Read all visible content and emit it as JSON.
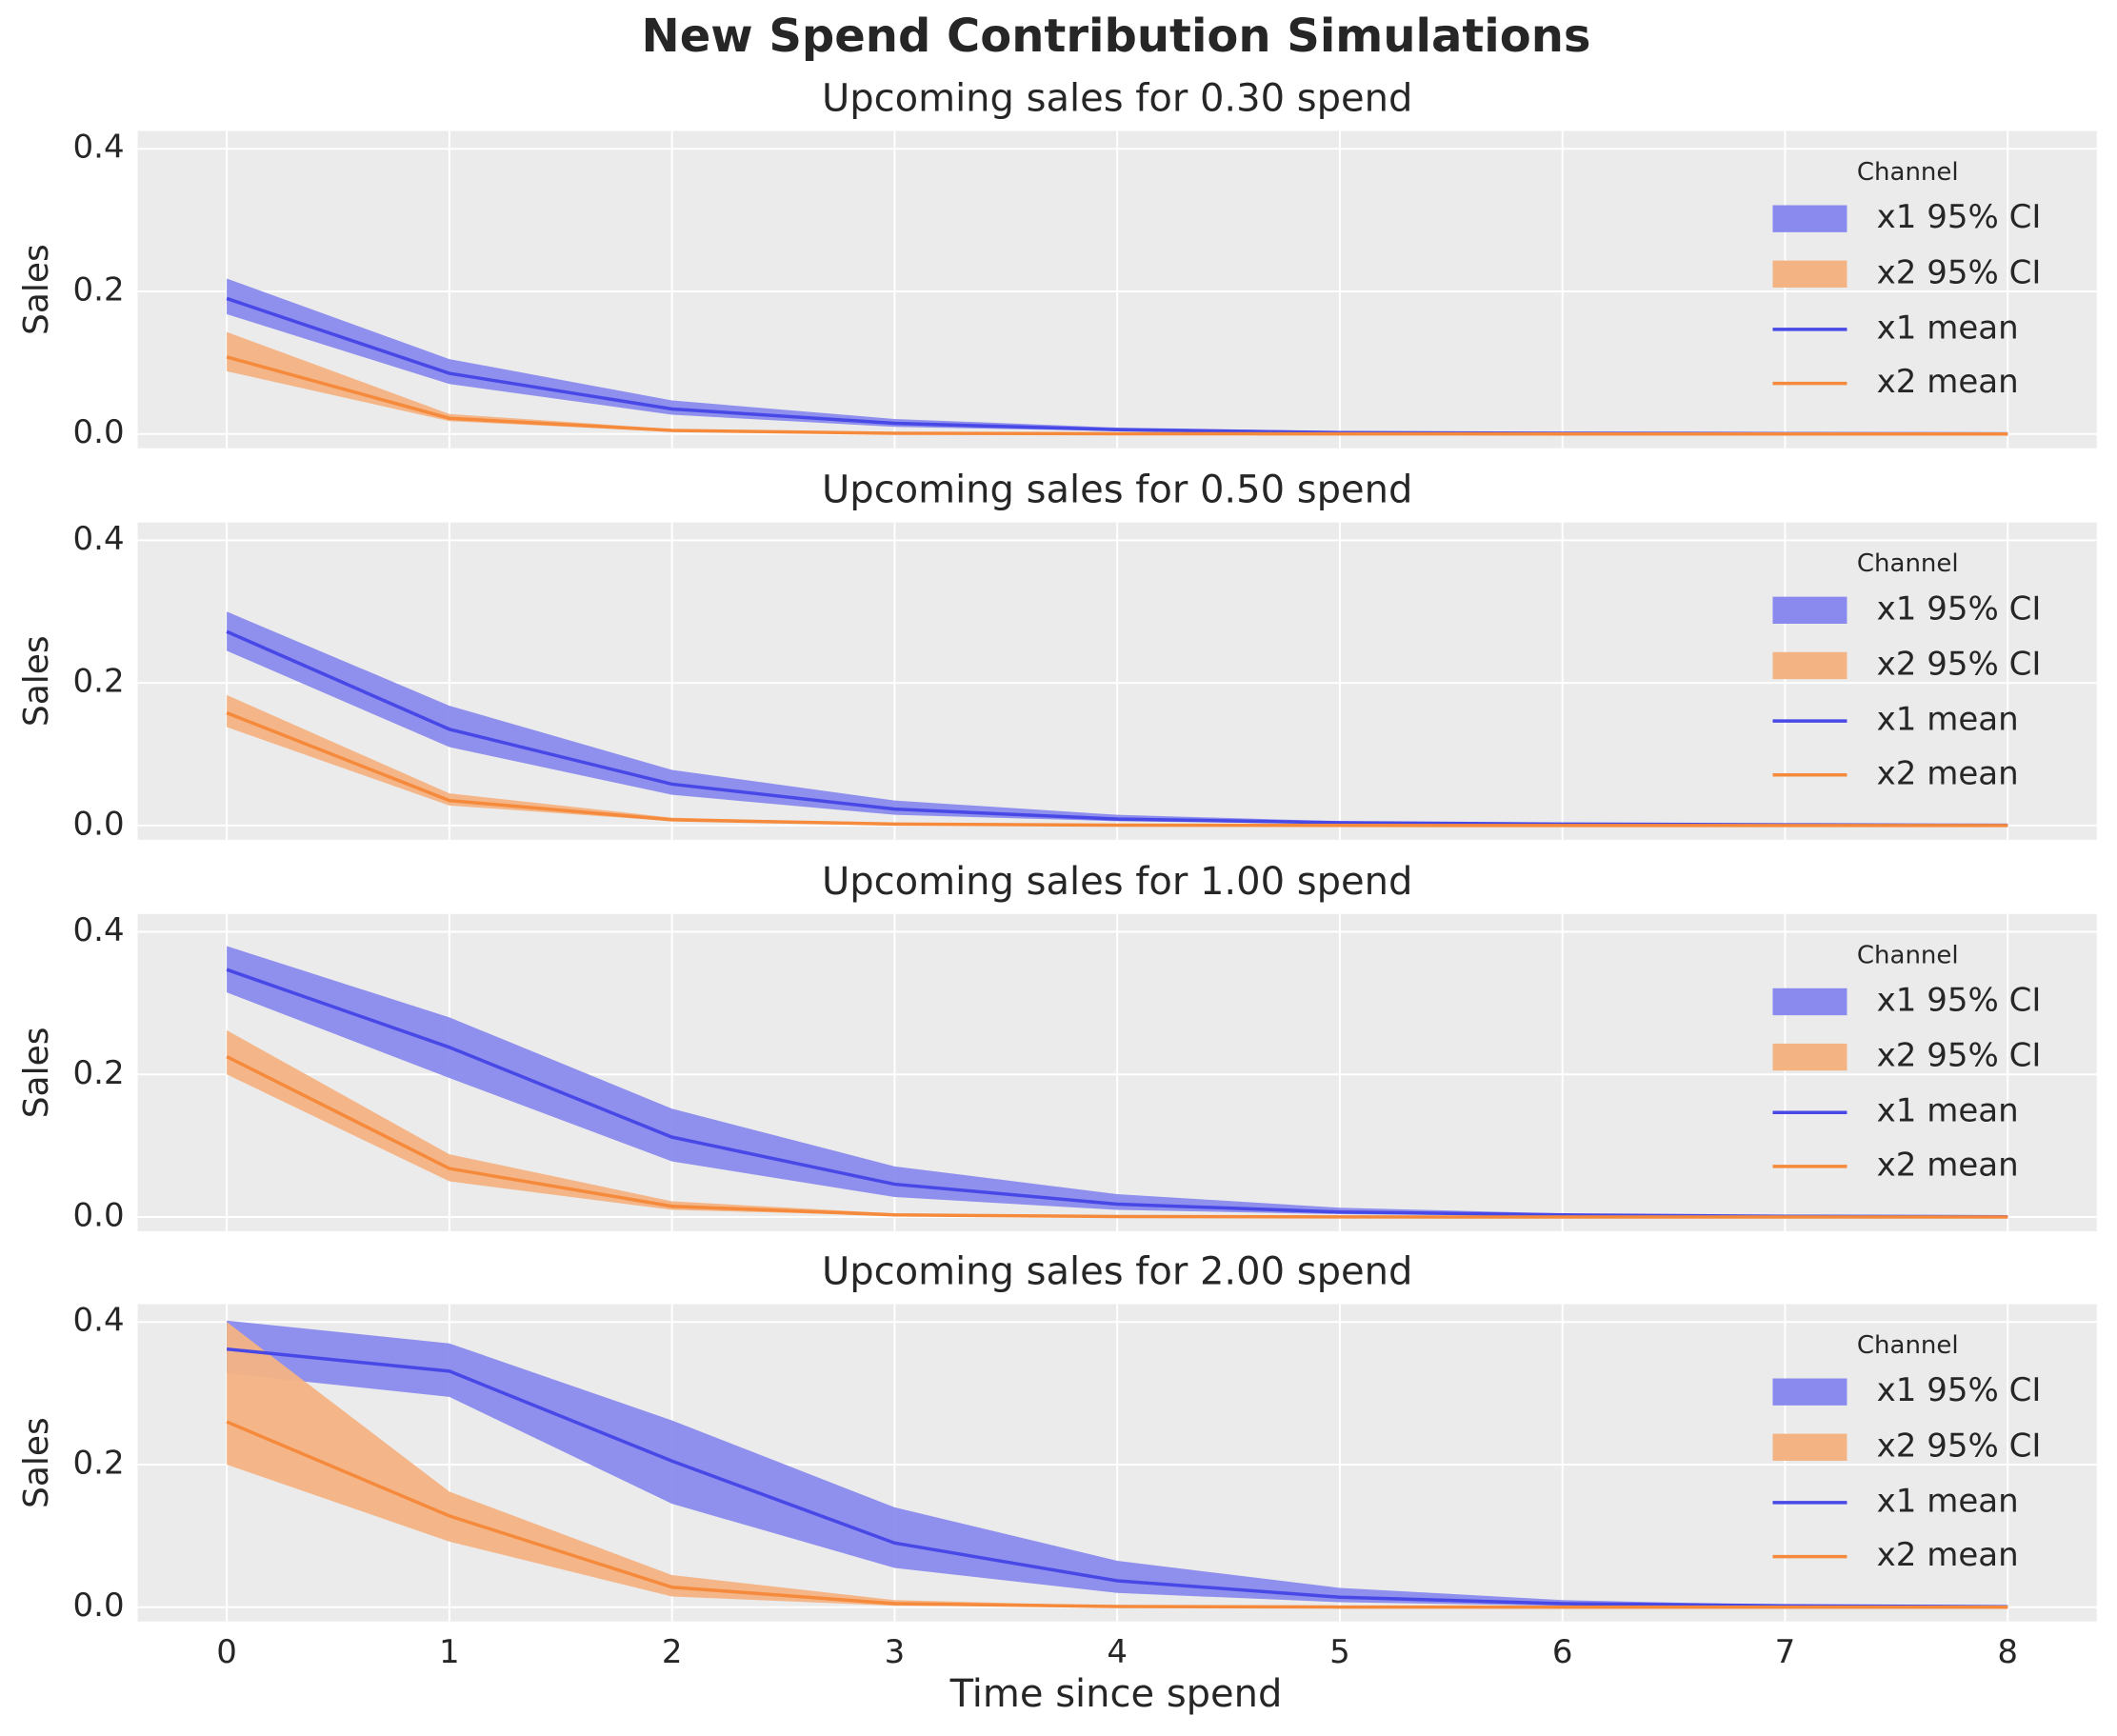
{
  "title": "New Spend Contribution Simulations",
  "xlabel": "Time since spend",
  "chart_data": [
    {
      "type": "line",
      "title": "Upcoming sales for 0.30 spend",
      "ylabel": "Sales",
      "x": [
        0,
        1,
        2,
        3,
        4,
        5,
        6,
        7,
        8
      ],
      "xlim": [
        -0.4,
        8.4
      ],
      "xticks": [
        0,
        1,
        2,
        3,
        4,
        5,
        6,
        7,
        8
      ],
      "ylim": [
        -0.02,
        0.425
      ],
      "yticks": [
        {
          "value": 0,
          "label": "0.0"
        },
        0.2,
        0.4
      ],
      "grid": true,
      "legend_title": "Channel",
      "legend": "right",
      "bands": [
        {
          "name": "x1 95% CI",
          "color": "#8a8aee",
          "lower": [
            0.168,
            0.07,
            0.027,
            0.01,
            0.004,
            0.001,
            0.0005,
            0.0002,
            0.0001
          ],
          "upper": [
            0.218,
            0.105,
            0.047,
            0.021,
            0.009,
            0.004,
            0.002,
            0.001,
            0.0005
          ]
        },
        {
          "name": "x2 95% CI",
          "color": "#f4b383",
          "lower": [
            0.088,
            0.018,
            0.003,
            0.0006,
            0.0001,
            0,
            0,
            0,
            0
          ],
          "upper": [
            0.143,
            0.028,
            0.007,
            0.002,
            0.0005,
            0.0001,
            0,
            0,
            0
          ]
        }
      ],
      "series": [
        {
          "name": "x1 mean",
          "color": "#4848e6",
          "values": [
            0.19,
            0.085,
            0.035,
            0.015,
            0.006,
            0.002,
            0.001,
            0.0005,
            0.0002
          ]
        },
        {
          "name": "x2 mean",
          "color": "#f58a3c",
          "values": [
            0.108,
            0.022,
            0.005,
            0.001,
            0.0003,
            0.0001,
            0,
            0,
            0
          ]
        }
      ]
    },
    {
      "type": "line",
      "title": "Upcoming sales for 0.50 spend",
      "ylabel": "Sales",
      "x": [
        0,
        1,
        2,
        3,
        4,
        5,
        6,
        7,
        8
      ],
      "xlim": [
        -0.4,
        8.4
      ],
      "xticks": [
        0,
        1,
        2,
        3,
        4,
        5,
        6,
        7,
        8
      ],
      "ylim": [
        -0.02,
        0.425
      ],
      "yticks": [
        {
          "value": 0,
          "label": "0.0"
        },
        0.2,
        0.4
      ],
      "grid": true,
      "legend_title": "Channel",
      "legend": "right",
      "bands": [
        {
          "name": "x1 95% CI",
          "color": "#8a8aee",
          "lower": [
            0.245,
            0.11,
            0.043,
            0.015,
            0.006,
            0.002,
            0.001,
            0.0004,
            0.0001
          ],
          "upper": [
            0.3,
            0.168,
            0.078,
            0.035,
            0.015,
            0.006,
            0.003,
            0.0015,
            0.0006
          ]
        },
        {
          "name": "x2 95% CI",
          "color": "#f4b383",
          "lower": [
            0.138,
            0.028,
            0.006,
            0.001,
            0.0002,
            0,
            0,
            0,
            0
          ],
          "upper": [
            0.183,
            0.045,
            0.011,
            0.003,
            0.0008,
            0.0002,
            0,
            0,
            0
          ]
        }
      ],
      "series": [
        {
          "name": "x1 mean",
          "color": "#4848e6",
          "values": [
            0.272,
            0.135,
            0.058,
            0.023,
            0.009,
            0.004,
            0.002,
            0.001,
            0.0003
          ]
        },
        {
          "name": "x2 mean",
          "color": "#f58a3c",
          "values": [
            0.158,
            0.035,
            0.008,
            0.002,
            0.0005,
            0.0001,
            0,
            0,
            0
          ]
        }
      ]
    },
    {
      "type": "line",
      "title": "Upcoming sales for 1.00 spend",
      "ylabel": "Sales",
      "x": [
        0,
        1,
        2,
        3,
        4,
        5,
        6,
        7,
        8
      ],
      "xlim": [
        -0.4,
        8.4
      ],
      "xticks": [
        0,
        1,
        2,
        3,
        4,
        5,
        6,
        7,
        8
      ],
      "ylim": [
        -0.02,
        0.425
      ],
      "yticks": [
        {
          "value": 0,
          "label": "0.0"
        },
        0.2,
        0.4
      ],
      "grid": true,
      "legend_title": "Channel",
      "legend": "right",
      "bands": [
        {
          "name": "x1 95% CI",
          "color": "#8a8aee",
          "lower": [
            0.315,
            0.195,
            0.078,
            0.028,
            0.01,
            0.004,
            0.0015,
            0.0005,
            0.0002
          ],
          "upper": [
            0.38,
            0.28,
            0.152,
            0.071,
            0.032,
            0.013,
            0.005,
            0.002,
            0.0008
          ]
        },
        {
          "name": "x2 95% CI",
          "color": "#f4b383",
          "lower": [
            0.2,
            0.05,
            0.01,
            0.002,
            0.0004,
            0,
            0,
            0,
            0
          ],
          "upper": [
            0.262,
            0.088,
            0.022,
            0.005,
            0.0012,
            0.0002,
            0,
            0,
            0
          ]
        }
      ],
      "series": [
        {
          "name": "x1 mean",
          "color": "#4848e6",
          "values": [
            0.347,
            0.238,
            0.112,
            0.046,
            0.018,
            0.007,
            0.003,
            0.001,
            0.0004
          ]
        },
        {
          "name": "x2 mean",
          "color": "#f58a3c",
          "values": [
            0.225,
            0.068,
            0.015,
            0.003,
            0.0007,
            0.0001,
            0,
            0,
            0
          ]
        }
      ]
    },
    {
      "type": "line",
      "title": "Upcoming sales for 2.00 spend",
      "ylabel": "Sales",
      "x": [
        0,
        1,
        2,
        3,
        4,
        5,
        6,
        7,
        8
      ],
      "xlim": [
        -0.4,
        8.4
      ],
      "xticks": [
        0,
        1,
        2,
        3,
        4,
        5,
        6,
        7,
        8
      ],
      "ylim": [
        -0.02,
        0.425
      ],
      "yticks": [
        {
          "value": 0,
          "label": "0.0"
        },
        0.2,
        0.4
      ],
      "grid": true,
      "legend_title": "Channel",
      "legend": "right",
      "bands": [
        {
          "name": "x1 95% CI",
          "color": "#8a8aee",
          "lower": [
            0.328,
            0.295,
            0.145,
            0.055,
            0.02,
            0.007,
            0.002,
            0.0008,
            0.0002
          ],
          "upper": [
            0.402,
            0.37,
            0.262,
            0.14,
            0.065,
            0.027,
            0.01,
            0.003,
            0.001
          ]
        },
        {
          "name": "x2 95% CI",
          "color": "#f4b383",
          "lower": [
            0.2,
            0.092,
            0.015,
            0.002,
            0.0004,
            0,
            0,
            0,
            0
          ],
          "upper": [
            0.4,
            0.162,
            0.045,
            0.01,
            0.002,
            0.0005,
            0,
            0,
            0
          ]
        }
      ],
      "series": [
        {
          "name": "x1 mean",
          "color": "#4848e6",
          "values": [
            0.362,
            0.331,
            0.205,
            0.09,
            0.037,
            0.014,
            0.005,
            0.002,
            0.0006
          ]
        },
        {
          "name": "x2 mean",
          "color": "#f58a3c",
          "values": [
            0.26,
            0.128,
            0.028,
            0.005,
            0.001,
            0.0002,
            0,
            0,
            0
          ]
        }
      ]
    }
  ]
}
